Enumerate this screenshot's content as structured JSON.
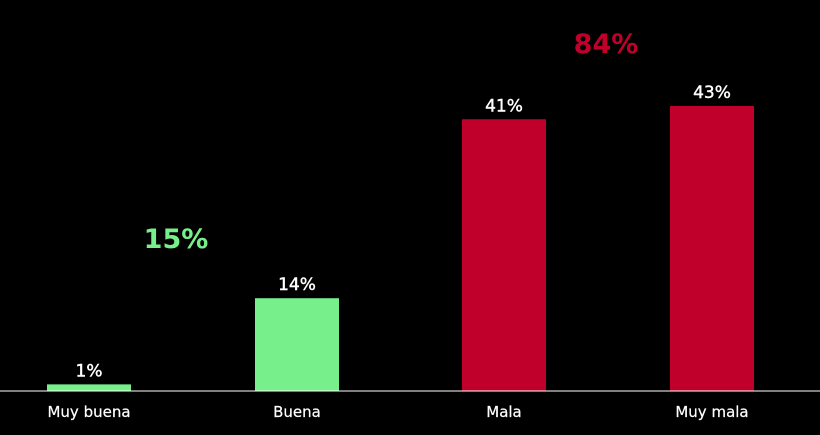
{
  "chart_data": {
    "type": "bar",
    "title": "",
    "xlabel": "",
    "ylabel": "",
    "ylim": [
      0,
      43
    ],
    "categories": [
      "Muy buena",
      "Buena",
      "Mala",
      "Muy mala"
    ],
    "values": [
      1,
      14,
      41,
      43
    ],
    "value_labels": [
      "1%",
      "14%",
      "41%",
      "43%"
    ],
    "bar_colors": [
      "#77f08c",
      "#77f08c",
      "#c0002a",
      "#c0002a"
    ],
    "grid": false,
    "annotations": [
      {
        "text": "15%",
        "color": "#77f08c",
        "group": "positive"
      },
      {
        "text": "84%",
        "color": "#c0002a",
        "group": "negative"
      }
    ]
  },
  "colors": {
    "background": "#000000",
    "positive": "#77f08c",
    "negative": "#c0002a",
    "text": "#ffffff",
    "axis": "#ffffff"
  }
}
